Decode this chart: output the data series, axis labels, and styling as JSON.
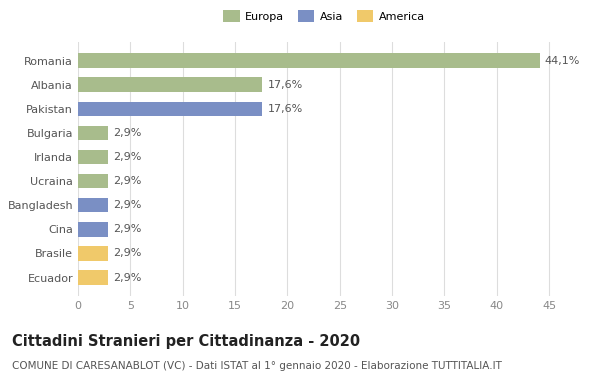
{
  "categories": [
    "Romania",
    "Albania",
    "Pakistan",
    "Bulgaria",
    "Irlanda",
    "Ucraina",
    "Bangladesh",
    "Cina",
    "Brasile",
    "Ecuador"
  ],
  "values": [
    44.1,
    17.6,
    17.6,
    2.9,
    2.9,
    2.9,
    2.9,
    2.9,
    2.9,
    2.9
  ],
  "labels": [
    "44,1%",
    "17,6%",
    "17,6%",
    "2,9%",
    "2,9%",
    "2,9%",
    "2,9%",
    "2,9%",
    "2,9%",
    "2,9%"
  ],
  "colors": [
    "#a8bc8c",
    "#a8bc8c",
    "#7a8fc4",
    "#a8bc8c",
    "#a8bc8c",
    "#a8bc8c",
    "#7a8fc4",
    "#7a8fc4",
    "#f0c96a",
    "#f0c96a"
  ],
  "legend_labels": [
    "Europa",
    "Asia",
    "America"
  ],
  "legend_colors": [
    "#a8bc8c",
    "#7a8fc4",
    "#f0c96a"
  ],
  "xlim": [
    0,
    47
  ],
  "xticks": [
    0,
    5,
    10,
    15,
    20,
    25,
    30,
    35,
    40,
    45
  ],
  "title": "Cittadini Stranieri per Cittadinanza - 2020",
  "subtitle": "COMUNE DI CARESANABLOT (VC) - Dati ISTAT al 1° gennaio 2020 - Elaborazione TUTTITALIA.IT",
  "background_color": "#ffffff",
  "grid_color": "#dddddd",
  "bar_height": 0.6,
  "title_fontsize": 10.5,
  "subtitle_fontsize": 7.5,
  "label_fontsize": 8,
  "tick_fontsize": 8
}
